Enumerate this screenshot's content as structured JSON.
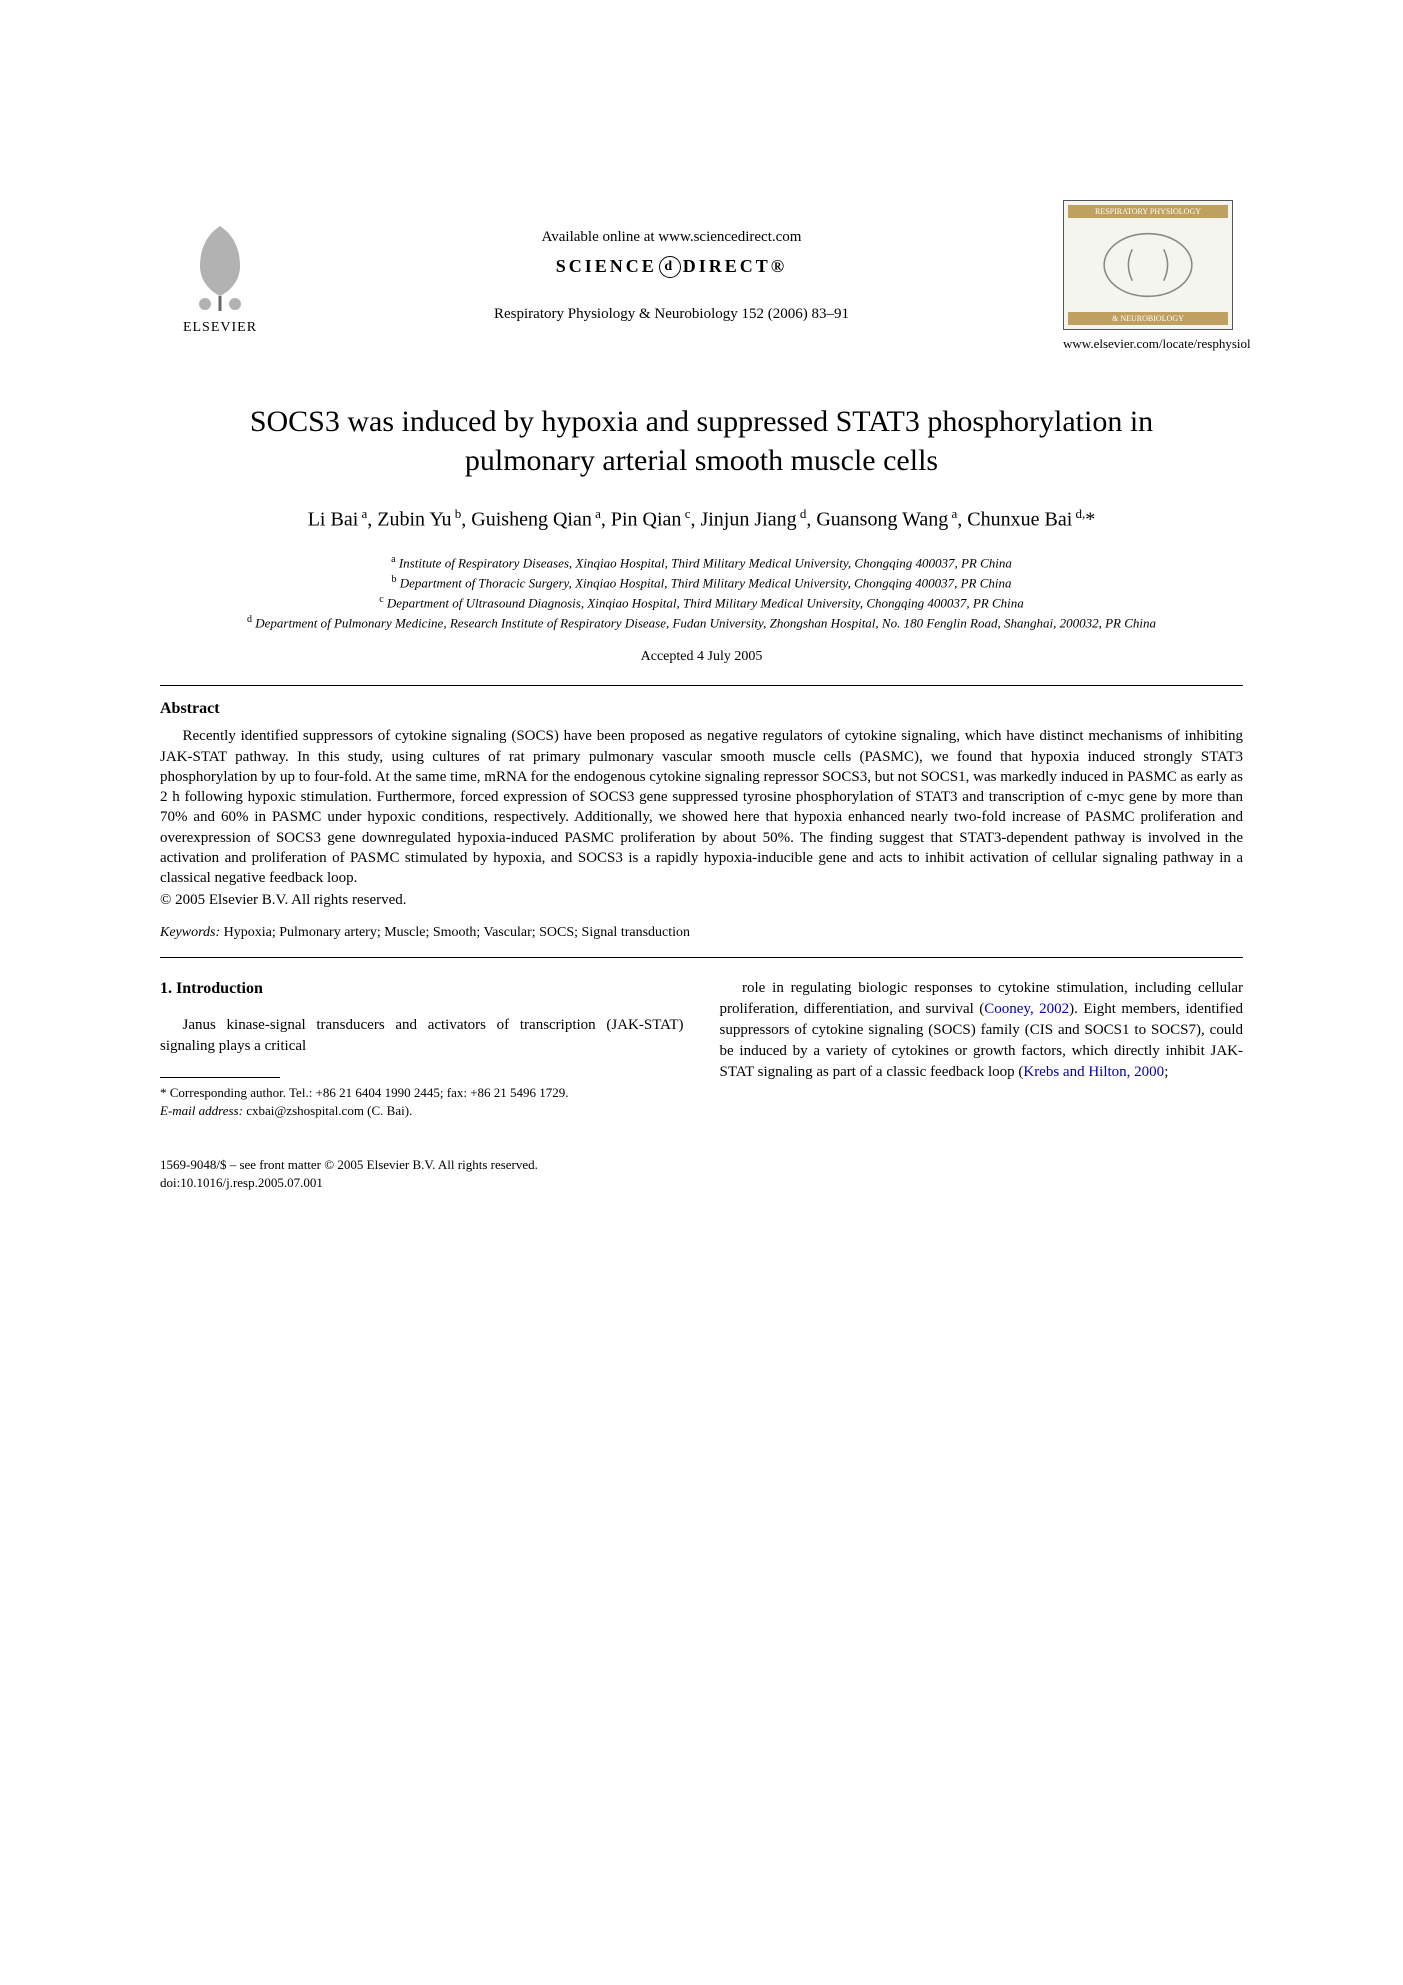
{
  "header": {
    "elsevier": "ELSEVIER",
    "available": "Available online at www.sciencedirect.com",
    "sciencedirect_left": "SCIENCE",
    "sciencedirect_at": "d",
    "sciencedirect_right": "DIRECT®",
    "journal_ref": "Respiratory Physiology & Neurobiology 152 (2006) 83–91",
    "journal_logo_top": "RESPIRATORY PHYSIOLOGY",
    "journal_logo_bottom": "& NEUROBIOLOGY",
    "journal_url": "www.elsevier.com/locate/resphysiol"
  },
  "title": "SOCS3 was induced by hypoxia and suppressed STAT3 phosphorylation in pulmonary arterial smooth muscle cells",
  "authors_html": "Li Bai<sup> a</sup>, Zubin Yu<sup> b</sup>, Guisheng Qian<sup> a</sup>, Pin Qian<sup> c</sup>, Jinjun Jiang<sup> d</sup>, Guansong Wang<sup> a</sup>, Chunxue Bai<sup> d,</sup>*",
  "affiliations": {
    "a": "Institute of Respiratory Diseases, Xinqiao Hospital, Third Military Medical University, Chongqing 400037, PR China",
    "b": "Department of Thoracic Surgery, Xinqiao Hospital, Third Military Medical University, Chongqing 400037, PR China",
    "c": "Department of Ultrasound Diagnosis, Xinqiao Hospital, Third Military Medical University, Chongqing 400037, PR China",
    "d": "Department of Pulmonary Medicine, Research Institute of Respiratory Disease, Fudan University, Zhongshan Hospital, No. 180 Fenglin Road, Shanghai, 200032, PR China"
  },
  "accepted": "Accepted 4 July 2005",
  "abstract_heading": "Abstract",
  "abstract_body": "Recently identified suppressors of cytokine signaling (SOCS) have been proposed as negative regulators of cytokine signaling, which have distinct mechanisms of inhibiting JAK-STAT pathway. In this study, using cultures of rat primary pulmonary vascular smooth muscle cells (PASMC), we found that hypoxia induced strongly STAT3 phosphorylation by up to four-fold. At the same time, mRNA for the endogenous cytokine signaling repressor SOCS3, but not SOCS1, was markedly induced in PASMC as early as 2 h following hypoxic stimulation. Furthermore, forced expression of SOCS3 gene suppressed tyrosine phosphorylation of STAT3 and transcription of c-myc gene by more than 70% and 60% in PASMC under hypoxic conditions, respectively. Additionally, we showed here that hypoxia enhanced nearly two-fold increase of PASMC proliferation and overexpression of SOCS3 gene downregulated hypoxia-induced PASMC proliferation by about 50%. The finding suggest that STAT3-dependent pathway is involved in the activation and proliferation of PASMC stimulated by hypoxia, and SOCS3 is a rapidly hypoxia-inducible gene and acts to inhibit activation of cellular signaling pathway in a classical negative feedback loop.",
  "copyright": "© 2005 Elsevier B.V. All rights reserved.",
  "keywords_label": "Keywords:",
  "keywords": " Hypoxia; Pulmonary artery; Muscle; Smooth; Vascular; SOCS; Signal transduction",
  "section1_heading": "1. Introduction",
  "col_left_p1": "Janus kinase-signal transducers and activators of transcription (JAK-STAT) signaling plays a critical",
  "col_right_p1": "role in regulating biologic responses to cytokine stimulation, including cellular proliferation, differentiation, and survival (Cooney, 2002). Eight members, identified suppressors of cytokine signaling (SOCS) family (CIS and SOCS1 to SOCS7), could be induced by a variety of cytokines or growth factors, which directly inhibit JAK-STAT signaling as part of a classic feedback loop (Krebs and Hilton, 2000;",
  "link_cooney": "Cooney, 2002",
  "link_krebs": "Krebs and Hilton, 2000",
  "footnote_corr": "* Corresponding author. Tel.: +86 21 6404 1990 2445; fax: +86 21 5496 1729.",
  "footnote_email_label": "E-mail address:",
  "footnote_email": " cxbai@zshospital.com (C. Bai).",
  "bottom_issn": "1569-9048/$ – see front matter © 2005 Elsevier B.V. All rights reserved.",
  "bottom_doi": "doi:10.1016/j.resp.2005.07.001",
  "colors": {
    "text": "#000000",
    "background": "#ffffff",
    "link": "#0000aa",
    "logo_band": "#c0a060"
  },
  "fonts": {
    "body_family": "Times New Roman",
    "title_size_pt": 22,
    "authors_size_pt": 15,
    "body_size_pt": 11,
    "affil_size_pt": 10,
    "footnote_size_pt": 9
  }
}
